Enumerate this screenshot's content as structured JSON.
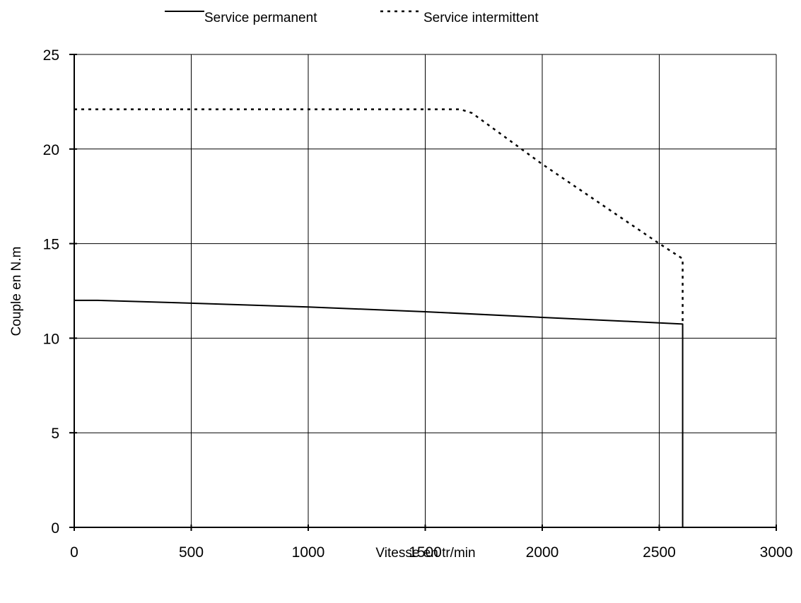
{
  "chart_data": {
    "type": "line",
    "title": "",
    "xlabel": "Vitesse en tr/min",
    "ylabel": "Couple en N.m",
    "xlim": [
      0,
      3000
    ],
    "ylim": [
      0,
      25
    ],
    "x_ticks": [
      0,
      500,
      1000,
      1500,
      2000,
      2500,
      3000
    ],
    "y_ticks": [
      0,
      5,
      10,
      15,
      20,
      25
    ],
    "grid": true,
    "legend_position": "top",
    "series": [
      {
        "name": "Service permanent",
        "style": "solid",
        "color": "#000000",
        "points": [
          [
            0,
            12.0
          ],
          [
            100,
            12.0
          ],
          [
            500,
            11.85
          ],
          [
            1000,
            11.65
          ],
          [
            1500,
            11.4
          ],
          [
            2000,
            11.1
          ],
          [
            2350,
            10.9
          ],
          [
            2600,
            10.75
          ],
          [
            2600,
            0
          ]
        ]
      },
      {
        "name": "Service intermittent",
        "style": "dotted",
        "color": "#000000",
        "points": [
          [
            0,
            22.1
          ],
          [
            1500,
            22.1
          ],
          [
            1650,
            22.1
          ],
          [
            1700,
            21.9
          ],
          [
            2000,
            19.2
          ],
          [
            2500,
            15.0
          ],
          [
            2600,
            14.2
          ],
          [
            2600,
            10.75
          ]
        ]
      }
    ]
  }
}
